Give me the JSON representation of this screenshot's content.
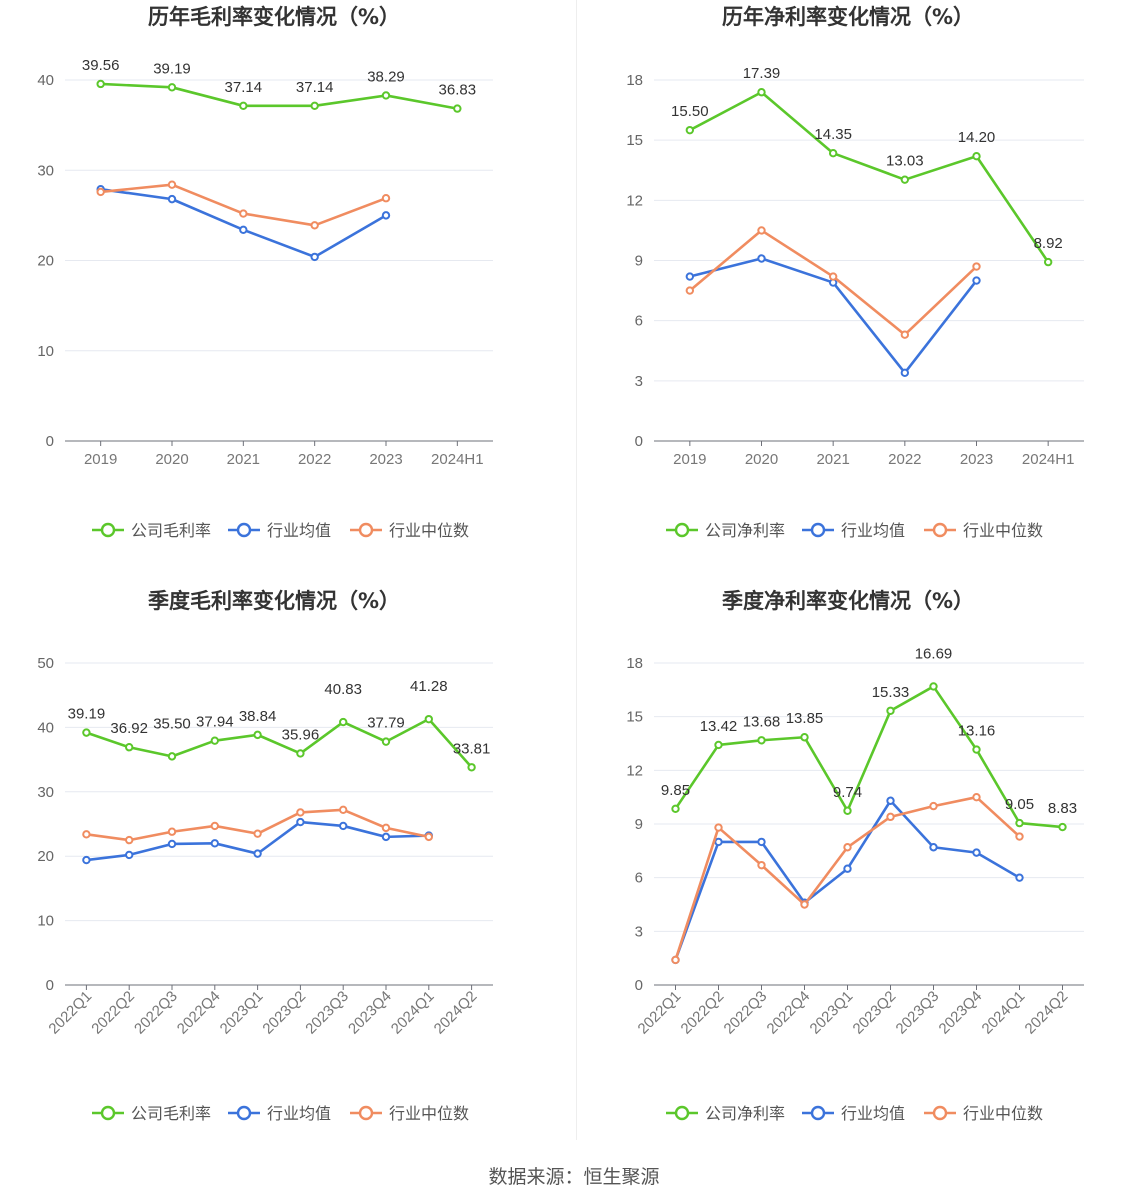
{
  "source_text": "数据来源：恒生聚源",
  "chart_data": [
    {
      "type": "line",
      "title": "历年毛利率变化情况（%）",
      "categories": [
        "2019",
        "2020",
        "2021",
        "2022",
        "2023",
        "2024H1"
      ],
      "ylim": [
        0,
        40
      ],
      "yticks": [
        0,
        10,
        20,
        30,
        40
      ],
      "grid": true,
      "legend_position": "bottom",
      "series": [
        {
          "name": "公司毛利率",
          "color": "#5bc72b",
          "values": [
            39.56,
            39.19,
            37.14,
            37.14,
            38.29,
            36.83
          ],
          "labels": [
            "39.56",
            "39.19",
            "37.14",
            "37.14",
            "38.29",
            "36.83"
          ]
        },
        {
          "name": "行业均值",
          "color": "#3b73db",
          "values": [
            27.9,
            26.8,
            23.4,
            20.4,
            25.0,
            null
          ]
        },
        {
          "name": "行业中位数",
          "color": "#f08c60",
          "values": [
            27.6,
            28.4,
            25.2,
            23.9,
            26.9,
            null
          ]
        }
      ]
    },
    {
      "type": "line",
      "title": "历年净利率变化情况（%）",
      "categories": [
        "2019",
        "2020",
        "2021",
        "2022",
        "2023",
        "2024H1"
      ],
      "ylim": [
        0,
        18
      ],
      "yticks": [
        0,
        3,
        6,
        9,
        12,
        15,
        18
      ],
      "grid": true,
      "legend_position": "bottom",
      "series": [
        {
          "name": "公司净利率",
          "color": "#5bc72b",
          "values": [
            15.5,
            17.39,
            14.35,
            13.03,
            14.2,
            8.92
          ],
          "labels": [
            "15.50",
            "17.39",
            "14.35",
            "13.03",
            "14.20",
            "8.92"
          ]
        },
        {
          "name": "行业均值",
          "color": "#3b73db",
          "values": [
            8.2,
            9.1,
            7.9,
            3.4,
            8.0,
            null
          ]
        },
        {
          "name": "行业中位数",
          "color": "#f08c60",
          "values": [
            7.5,
            10.5,
            8.2,
            5.3,
            8.7,
            null
          ]
        }
      ]
    },
    {
      "type": "line",
      "title": "季度毛利率变化情况（%）",
      "categories": [
        "2022Q1",
        "2022Q2",
        "2022Q3",
        "2022Q4",
        "2023Q1",
        "2023Q2",
        "2023Q3",
        "2023Q4",
        "2024Q1",
        "2024Q2"
      ],
      "ylim": [
        0,
        50
      ],
      "yticks": [
        0,
        10,
        20,
        30,
        40,
        50
      ],
      "grid": true,
      "legend_position": "bottom",
      "series": [
        {
          "name": "公司毛利率",
          "color": "#5bc72b",
          "values": [
            39.19,
            36.92,
            35.5,
            37.94,
            38.84,
            35.96,
            40.83,
            37.79,
            41.28,
            33.81
          ],
          "labels": [
            "39.19",
            "36.92",
            "35.50",
            "37.94",
            "38.84",
            "35.96",
            "40.83",
            "37.79",
            "41.28",
            "33.81"
          ]
        },
        {
          "name": "行业均值",
          "color": "#3b73db",
          "values": [
            19.4,
            20.2,
            21.9,
            22.0,
            20.4,
            25.3,
            24.7,
            23.0,
            23.2,
            null
          ]
        },
        {
          "name": "行业中位数",
          "color": "#f08c60",
          "values": [
            23.4,
            22.5,
            23.8,
            24.7,
            23.5,
            26.8,
            27.2,
            24.4,
            23.0,
            null
          ]
        }
      ]
    },
    {
      "type": "line",
      "title": "季度净利率变化情况（%）",
      "categories": [
        "2022Q1",
        "2022Q2",
        "2022Q3",
        "2022Q4",
        "2023Q1",
        "2023Q2",
        "2023Q3",
        "2023Q4",
        "2024Q1",
        "2024Q2"
      ],
      "ylim": [
        0,
        18
      ],
      "yticks": [
        0,
        3,
        6,
        9,
        12,
        15,
        18
      ],
      "grid": true,
      "legend_position": "bottom",
      "series": [
        {
          "name": "公司净利率",
          "color": "#5bc72b",
          "values": [
            9.85,
            13.42,
            13.68,
            13.85,
            9.74,
            15.33,
            16.69,
            13.16,
            9.05,
            8.83
          ],
          "labels": [
            "9.85",
            "13.42",
            "13.68",
            "13.85",
            "9.74",
            "15.33",
            "16.69",
            "13.16",
            "9.05",
            "8.83"
          ]
        },
        {
          "name": "行业均值",
          "color": "#3b73db",
          "values": [
            1.4,
            8.0,
            8.0,
            4.6,
            6.5,
            10.3,
            7.7,
            7.4,
            6.0,
            null
          ]
        },
        {
          "name": "行业中位数",
          "color": "#f08c60",
          "values": [
            1.4,
            8.8,
            6.7,
            4.5,
            7.7,
            9.4,
            10.0,
            10.5,
            8.3,
            null
          ]
        }
      ]
    }
  ]
}
